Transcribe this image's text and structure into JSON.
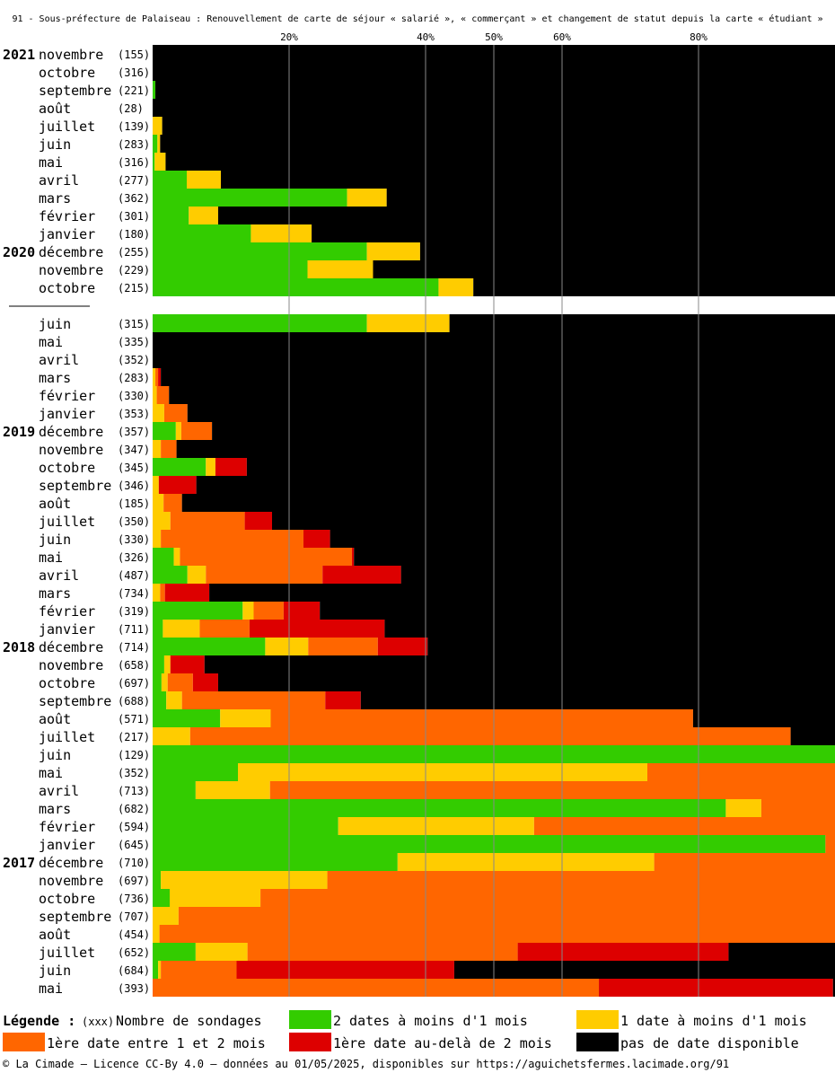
{
  "title": "91 - Sous-préfecture de Palaiseau : Renouvellement de carte de séjour « salarié », « commerçant » et changement de statut depuis la carte « étudiant »",
  "footer": "© La Cimade — Licence CC-By 4.0 — données au 01/05/2025, disponibles sur https://aguichetsfermes.lacimade.org/91",
  "legend": {
    "heading": "Légende :",
    "count_symbol": "(xxx)",
    "count_label": "Nombre de sondages",
    "items": [
      {
        "key": "green",
        "label": "2 dates à moins d'1 mois"
      },
      {
        "key": "yellow",
        "label": "1 date à moins d'1 mois"
      },
      {
        "key": "orange",
        "label": "1ère date entre 1 et 2 mois"
      },
      {
        "key": "red",
        "label": "1ère date au-delà de 2 mois"
      },
      {
        "key": "black",
        "label": "pas de date disponible"
      }
    ]
  },
  "chart_data": {
    "type": "bar",
    "orientation": "horizontal",
    "stacked": true,
    "percent": true,
    "xlim": [
      0,
      100
    ],
    "ticks": [
      20,
      40,
      50,
      60,
      80
    ],
    "tick_labels": [
      "20%",
      "40%",
      "50%",
      "60%",
      "80%"
    ],
    "grid": true,
    "legend_position": "bottom",
    "colors": {
      "green": "#33cc00",
      "yellow": "#ffcc00",
      "orange": "#ff6600",
      "red": "#dd0000",
      "black": "#000000"
    },
    "series_order": [
      "green",
      "yellow",
      "orange",
      "red",
      "black"
    ],
    "rows": [
      {
        "year": "2021",
        "month": "novembre",
        "count": "(155)",
        "values": [
          0,
          0,
          0,
          0,
          100
        ]
      },
      {
        "year": "",
        "month": "octobre",
        "count": "(316)",
        "values": [
          0,
          0,
          0,
          0,
          100
        ]
      },
      {
        "year": "",
        "month": "septembre",
        "count": "(221)",
        "values": [
          0.4,
          0,
          0,
          0,
          99.6
        ]
      },
      {
        "year": "",
        "month": "août",
        "count": "(28)",
        "values": [
          0,
          0,
          0,
          0,
          100
        ]
      },
      {
        "year": "",
        "month": "juillet",
        "count": "(139)",
        "values": [
          0,
          1.4,
          0,
          0,
          98.6
        ]
      },
      {
        "year": "",
        "month": "juin",
        "count": "(283)",
        "values": [
          0.7,
          0.4,
          0,
          0,
          98.9
        ]
      },
      {
        "year": "",
        "month": "mai",
        "count": "(316)",
        "values": [
          0.3,
          1.6,
          0,
          0,
          98.1
        ]
      },
      {
        "year": "",
        "month": "avril",
        "count": "(277)",
        "values": [
          5,
          5,
          0,
          0,
          90
        ]
      },
      {
        "year": "",
        "month": "mars",
        "count": "(362)",
        "values": [
          28.5,
          5.8,
          0,
          0,
          65.7
        ]
      },
      {
        "year": "",
        "month": "février",
        "count": "(301)",
        "values": [
          5.3,
          4.3,
          0,
          0,
          90.4
        ]
      },
      {
        "year": "",
        "month": "janvier",
        "count": "(180)",
        "values": [
          14.4,
          8.9,
          0,
          0,
          76.7
        ]
      },
      {
        "year": "2020",
        "month": "décembre",
        "count": "(255)",
        "values": [
          31.4,
          7.8,
          0,
          0,
          60.8
        ]
      },
      {
        "year": "",
        "month": "novembre",
        "count": "(229)",
        "values": [
          22.7,
          9.6,
          0,
          0,
          67.7
        ]
      },
      {
        "year": "",
        "month": "octobre",
        "count": "(215)",
        "values": [
          41.9,
          5.1,
          0,
          0,
          53
        ]
      },
      {
        "gap": true
      },
      {
        "year": "",
        "month": "juin",
        "count": "(315)",
        "values": [
          31.4,
          12.1,
          0,
          0,
          56.5
        ]
      },
      {
        "year": "",
        "month": "mai",
        "count": "(335)",
        "values": [
          0,
          0,
          0,
          0,
          100
        ]
      },
      {
        "year": "",
        "month": "avril",
        "count": "(352)",
        "values": [
          0,
          0,
          0,
          0,
          100
        ]
      },
      {
        "year": "",
        "month": "mars",
        "count": "(283)",
        "values": [
          0,
          0.4,
          0.4,
          0.4,
          98.8
        ]
      },
      {
        "year": "",
        "month": "février",
        "count": "(330)",
        "values": [
          0,
          0.6,
          1.8,
          0,
          97.6
        ]
      },
      {
        "year": "",
        "month": "janvier",
        "count": "(353)",
        "values": [
          0,
          1.7,
          3.4,
          0,
          94.9
        ]
      },
      {
        "year": "2019",
        "month": "décembre",
        "count": "(357)",
        "values": [
          3.4,
          0.8,
          4.5,
          0,
          91.3
        ]
      },
      {
        "year": "",
        "month": "novembre",
        "count": "(347)",
        "values": [
          0,
          1.2,
          2.3,
          0,
          96.5
        ]
      },
      {
        "year": "",
        "month": "octobre",
        "count": "(345)",
        "values": [
          7.8,
          1.4,
          0,
          4.6,
          86.2
        ]
      },
      {
        "year": "",
        "month": "septembre",
        "count": "(346)",
        "values": [
          0,
          0.9,
          0,
          5.5,
          93.6
        ]
      },
      {
        "year": "",
        "month": "août",
        "count": "(185)",
        "values": [
          0,
          1.6,
          2.7,
          0,
          95.7
        ]
      },
      {
        "year": "",
        "month": "juillet",
        "count": "(350)",
        "values": [
          0,
          2.6,
          10.9,
          4,
          82.5
        ]
      },
      {
        "year": "",
        "month": "juin",
        "count": "(330)",
        "values": [
          0,
          1.2,
          20.9,
          3.9,
          74
        ]
      },
      {
        "year": "",
        "month": "mai",
        "count": "(326)",
        "values": [
          3.1,
          0.9,
          25.2,
          0.3,
          70.5
        ]
      },
      {
        "year": "",
        "month": "avril",
        "count": "(487)",
        "values": [
          5.1,
          2.7,
          17.1,
          11.5,
          63.6
        ]
      },
      {
        "year": "",
        "month": "mars",
        "count": "(734)",
        "values": [
          0,
          1.1,
          0.7,
          6.5,
          91.7
        ]
      },
      {
        "year": "",
        "month": "février",
        "count": "(319)",
        "values": [
          13.2,
          1.6,
          4.4,
          5.3,
          75.5
        ]
      },
      {
        "year": "",
        "month": "janvier",
        "count": "(711)",
        "values": [
          1.5,
          5.4,
          7.3,
          19.8,
          66
        ]
      },
      {
        "year": "2018",
        "month": "décembre",
        "count": "(714)",
        "values": [
          16.5,
          6.3,
          10.2,
          7.3,
          59.7
        ]
      },
      {
        "year": "",
        "month": "novembre",
        "count": "(658)",
        "values": [
          1.7,
          0.9,
          0,
          5,
          92.4
        ]
      },
      {
        "year": "",
        "month": "octobre",
        "count": "(697)",
        "values": [
          1.3,
          0.9,
          3.7,
          3.7,
          90.4
        ]
      },
      {
        "year": "",
        "month": "septembre",
        "count": "(688)",
        "values": [
          2,
          2.3,
          21,
          5.2,
          69.5
        ]
      },
      {
        "year": "",
        "month": "août",
        "count": "(571)",
        "values": [
          9.9,
          7.4,
          61.9,
          0,
          20.8
        ]
      },
      {
        "year": "",
        "month": "juillet",
        "count": "(217)",
        "values": [
          0,
          5.5,
          88,
          0,
          6.5
        ]
      },
      {
        "year": "",
        "month": "juin",
        "count": "(129)",
        "values": [
          100,
          0,
          0,
          0,
          0
        ]
      },
      {
        "year": "",
        "month": "mai",
        "count": "(352)",
        "values": [
          12.5,
          60,
          27.5,
          0,
          0
        ]
      },
      {
        "year": "",
        "month": "avril",
        "count": "(713)",
        "values": [
          6.3,
          10.9,
          82.8,
          0,
          0
        ]
      },
      {
        "year": "",
        "month": "mars",
        "count": "(682)",
        "values": [
          84,
          5.2,
          10.8,
          0,
          0
        ]
      },
      {
        "year": "",
        "month": "février",
        "count": "(594)",
        "values": [
          27.2,
          28.7,
          44.1,
          0,
          0
        ]
      },
      {
        "year": "",
        "month": "janvier",
        "count": "(645)",
        "values": [
          98.6,
          0,
          1.4,
          0,
          0
        ]
      },
      {
        "year": "2017",
        "month": "décembre",
        "count": "(710)",
        "values": [
          35.9,
          37.6,
          26.5,
          0,
          0
        ]
      },
      {
        "year": "",
        "month": "novembre",
        "count": "(697)",
        "values": [
          1.2,
          24.4,
          74.4,
          0,
          0
        ]
      },
      {
        "year": "",
        "month": "octobre",
        "count": "(736)",
        "values": [
          2.5,
          13.3,
          84.2,
          0,
          0
        ]
      },
      {
        "year": "",
        "month": "septembre",
        "count": "(707)",
        "values": [
          0,
          3.8,
          96.2,
          0,
          0
        ]
      },
      {
        "year": "",
        "month": "août",
        "count": "(454)",
        "values": [
          0,
          1,
          99,
          0,
          0
        ]
      },
      {
        "year": "",
        "month": "juillet",
        "count": "(652)",
        "values": [
          6.3,
          7.6,
          39.6,
          30.9,
          15.6
        ]
      },
      {
        "year": "",
        "month": "juin",
        "count": "(684)",
        "values": [
          0.8,
          0.4,
          11.1,
          31.9,
          55.8
        ]
      },
      {
        "year": "",
        "month": "mai",
        "count": "(393)",
        "values": [
          0,
          0,
          65.4,
          34.3,
          0.3
        ]
      }
    ]
  }
}
